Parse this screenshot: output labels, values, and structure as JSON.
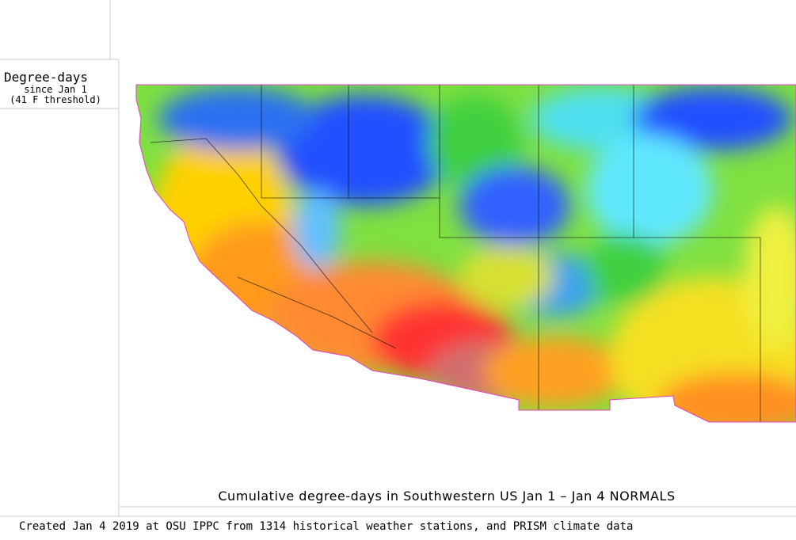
{
  "legend": {
    "title": "Degree-days",
    "subtitle": "since Jan 1",
    "threshold": "(41 F threshold)"
  },
  "caption": "Cumulative degree-days in Southwestern US Jan 1 – Jan 4 NORMALS",
  "footer": "Created Jan 4 2019 at OSU IPPC from 1314 historical weather stations, and PRISM climate data"
}
